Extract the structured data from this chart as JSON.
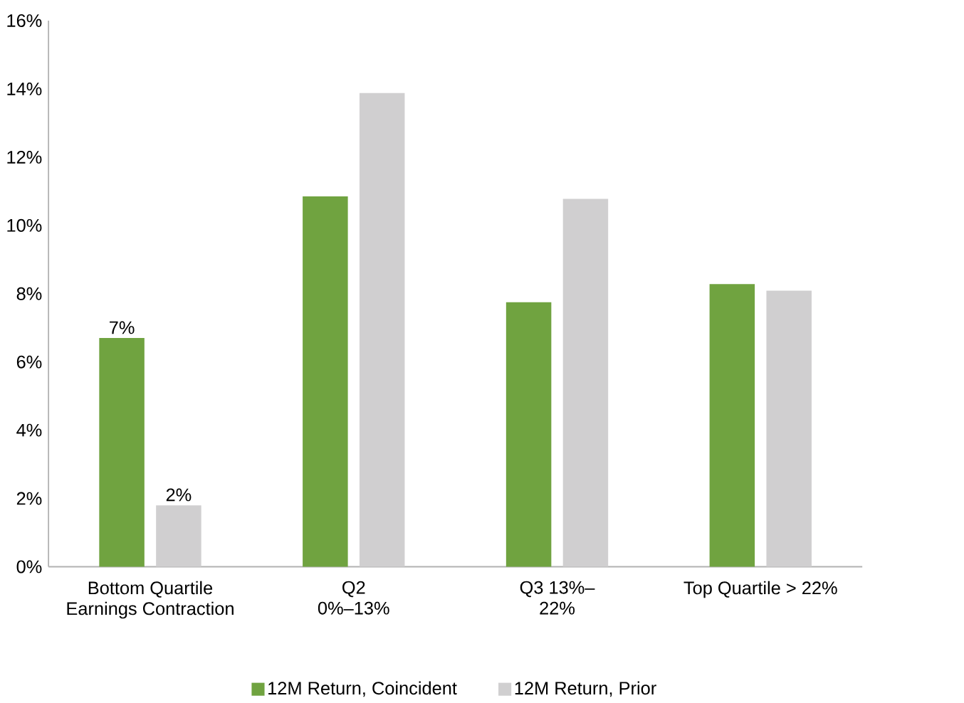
{
  "chart_data": {
    "type": "bar",
    "categories": [
      "Bottom Quartile Earnings Contraction",
      "Q2 0%–13%",
      "Q3 13%–22%",
      "Top Quartile > 22%"
    ],
    "series": [
      {
        "name": "12M Return, Coincident",
        "color": "#70a340",
        "values": [
          6.7,
          10.85,
          7.75,
          8.28
        ],
        "value_labels": [
          "7%",
          null,
          null,
          null
        ]
      },
      {
        "name": "12M Return, Prior",
        "color": "#d0cfd0",
        "values": [
          1.8,
          13.88,
          10.78,
          8.09
        ],
        "value_labels": [
          "2%",
          null,
          null,
          null
        ]
      }
    ],
    "ylim": [
      0,
      16
    ],
    "yticks": [
      {
        "value": 0,
        "label": "0%"
      },
      {
        "value": 2,
        "label": "2%"
      },
      {
        "value": 4,
        "label": "4%"
      },
      {
        "value": 6,
        "label": "6%"
      },
      {
        "value": 8,
        "label": "8%"
      },
      {
        "value": 10,
        "label": "10%"
      },
      {
        "value": 12,
        "label": "12%"
      },
      {
        "value": 14,
        "label": "14%"
      },
      {
        "value": 16,
        "label": "16%"
      }
    ],
    "grid": false,
    "legend": "bottom"
  }
}
